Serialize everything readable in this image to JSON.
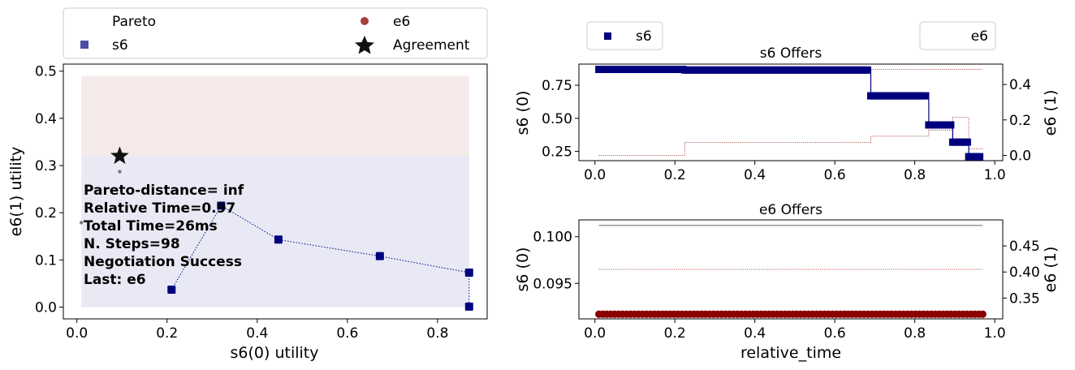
{
  "chart_data": [
    {
      "type": "scatter",
      "panel": "utility-space",
      "xlabel": "s6(0) utility",
      "ylabel": "e6(1) utility",
      "xlim": [
        -0.03,
        0.91
      ],
      "ylim": [
        -0.025,
        0.515
      ],
      "xticks": [
        "0.0",
        "0.2",
        "0.4",
        "0.6",
        "0.8"
      ],
      "yticks": [
        "0.0",
        "0.1",
        "0.2",
        "0.3",
        "0.4",
        "0.5"
      ],
      "grid": false,
      "legend": {
        "placement": "top-outside",
        "entries": [
          "Pareto",
          "e6",
          "s6",
          "Agreement"
        ]
      },
      "regions": [
        {
          "name": "s6",
          "color": "#e9e9f5",
          "x": [
            0.01,
            0.87
          ],
          "y": [
            0.0,
            0.32
          ]
        },
        {
          "name": "e6",
          "color": "#f5e9e9",
          "x": [
            0.01,
            0.87
          ],
          "y": [
            0.32,
            0.49
          ]
        }
      ],
      "series": [
        {
          "name": "s6",
          "color": "#00007f",
          "marker": "square",
          "line": "dotted",
          "points": [
            [
              0.21,
              0.037
            ],
            [
              0.32,
              0.215
            ],
            [
              0.447,
              0.143
            ],
            [
              0.672,
              0.108
            ],
            [
              0.87,
              0.073
            ],
            [
              0.87,
              0.001
            ]
          ]
        },
        {
          "name": "e6",
          "color": "#8b0000",
          "marker": "circle",
          "points": [
            [
              0.095,
              0.287
            ],
            [
              0.01,
              0.179
            ]
          ]
        }
      ],
      "agreement": {
        "name": "Agreement",
        "x": 0.095,
        "y": 0.32
      },
      "annotation": [
        "Pareto-distance=  inf",
        "Relative Time=0.97",
        "Total Time=26ms",
        "N. Steps=98",
        "Negotiation Success",
        "Last: e6"
      ]
    },
    {
      "type": "line",
      "panel": "s6-offers",
      "title": "s6 Offers",
      "ylabel_left": "s6 (0)",
      "ylabel_right": "e6 (1)",
      "xlim": [
        -0.04,
        1.02
      ],
      "ylim_left": [
        0.18,
        0.91
      ],
      "ylim_right": [
        -0.03,
        0.515
      ],
      "xticks": [
        "0.0",
        "0.2",
        "0.4",
        "0.6",
        "0.8",
        "1.0"
      ],
      "yticks_left": [
        "0.25",
        "0.50",
        "0.75"
      ],
      "yticks_right": [
        "0.0",
        "0.2",
        "0.4"
      ],
      "legend": {
        "left": "s6",
        "right": "e6"
      },
      "series": [
        {
          "name": "s6",
          "color": "#00007f",
          "marker": "square",
          "axis": "left",
          "steps": [
            [
              0.01,
              0.225,
              0.87
            ],
            [
              0.225,
              0.69,
              0.865
            ],
            [
              0.69,
              0.835,
              0.67
            ],
            [
              0.835,
              0.895,
              0.45
            ],
            [
              0.895,
              0.935,
              0.32
            ],
            [
              0.935,
              0.97,
              0.21
            ]
          ]
        },
        {
          "name": "e6",
          "color": "#8b0000",
          "line": "dotted",
          "axis": "right",
          "steps": [
            [
              0.01,
              0.225,
              0.0
            ],
            [
              0.225,
              0.69,
              0.073
            ],
            [
              0.69,
              0.835,
              0.108
            ],
            [
              0.835,
              0.895,
              0.143
            ],
            [
              0.895,
              0.935,
              0.215
            ],
            [
              0.935,
              0.97,
              0.037
            ]
          ]
        },
        {
          "name": "e6",
          "color": "#8b0000",
          "line": "dotted",
          "axis": "left",
          "steps": [
            [
              0.01,
              0.97,
              0.87
            ]
          ]
        }
      ]
    },
    {
      "type": "line",
      "panel": "e6-offers",
      "title": "e6 Offers",
      "xlabel": "relative_time",
      "ylabel_left": "s6 (0)",
      "ylabel_right": "e6 (1)",
      "xlim": [
        -0.04,
        1.02
      ],
      "ylim_left": [
        0.0912,
        0.1018
      ],
      "ylim_right": [
        0.31,
        0.5
      ],
      "xticks": [
        "0.0",
        "0.2",
        "0.4",
        "0.6",
        "0.8",
        "1.0"
      ],
      "yticks_left": [
        "0.095",
        "0.100"
      ],
      "yticks_right": [
        "0.35",
        "0.40",
        "0.45"
      ],
      "series": [
        {
          "name": "e6",
          "color": "#8b0000",
          "marker": "circle",
          "axis": "left",
          "x_range": [
            0.01,
            0.97
          ],
          "y": 0.0917,
          "count": 98
        },
        {
          "name": "e6",
          "color": "#8b0000",
          "line": "dotted",
          "axis": "right",
          "x_range": [
            0.01,
            0.97
          ],
          "y": 0.405
        },
        {
          "name": "s6",
          "color": "#333333",
          "line": "solid",
          "axis": "left",
          "x_range": [
            0.01,
            0.97
          ],
          "y": 0.1012
        }
      ]
    }
  ]
}
